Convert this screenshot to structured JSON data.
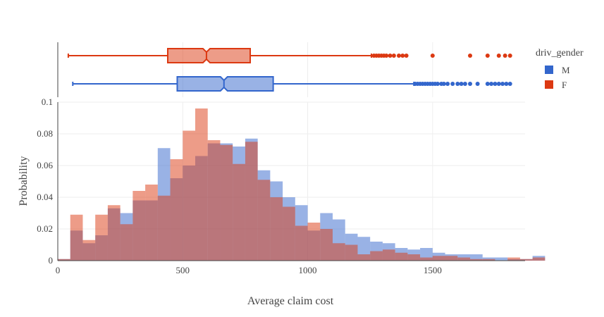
{
  "chart_data": {
    "type": "histogram",
    "xlabel": "Average claim cost",
    "ylabel": "Probability",
    "xlim": [
      0,
      1870
    ],
    "ylim": [
      0,
      0.1
    ],
    "x_ticks": [
      "0",
      "500",
      "1000",
      "1500"
    ],
    "y_ticks": [
      "0",
      "0.02",
      "0.04",
      "0.06",
      "0.08",
      "0.1"
    ],
    "grid": true,
    "bin_width": 50,
    "bin_start": 0,
    "legend": {
      "title": "driv_gender",
      "placement": "top-right",
      "entries": [
        "M",
        "F"
      ]
    },
    "series": [
      {
        "name": "M",
        "color": "#3366cc",
        "values": [
          0.001,
          0.019,
          0.011,
          0.016,
          0.033,
          0.03,
          0.038,
          0.038,
          0.071,
          0.052,
          0.06,
          0.066,
          0.074,
          0.074,
          0.072,
          0.077,
          0.057,
          0.05,
          0.04,
          0.035,
          0.019,
          0.03,
          0.026,
          0.017,
          0.015,
          0.012,
          0.011,
          0.008,
          0.007,
          0.008,
          0.005,
          0.004,
          0.004,
          0.004,
          0.002,
          0.002,
          0.001,
          0.001,
          0.003
        ],
        "box": {
          "min": 60,
          "q1": 478,
          "median": 665,
          "q3": 862,
          "upper_fence": 1425,
          "outliers": [
            1430,
            1440,
            1450,
            1460,
            1470,
            1480,
            1490,
            1500,
            1510,
            1520,
            1535,
            1545,
            1560,
            1580,
            1600,
            1615,
            1630,
            1650,
            1680,
            1720,
            1735,
            1750,
            1765,
            1780,
            1795,
            1810
          ]
        }
      },
      {
        "name": "F",
        "color": "#dc3912",
        "values": [
          0.001,
          0.029,
          0.013,
          0.029,
          0.035,
          0.023,
          0.044,
          0.048,
          0.041,
          0.064,
          0.082,
          0.096,
          0.076,
          0.073,
          0.061,
          0.075,
          0.051,
          0.04,
          0.034,
          0.022,
          0.024,
          0.02,
          0.011,
          0.01,
          0.004,
          0.006,
          0.007,
          0.005,
          0.004,
          0.002,
          0.003,
          0.003,
          0.002,
          0.001,
          0.001,
          0.0,
          0.002,
          0.001,
          0.002
        ],
        "box": {
          "min": 42,
          "q1": 440,
          "median": 595,
          "q3": 770,
          "upper_fence": 1255,
          "outliers": [
            1265,
            1275,
            1285,
            1295,
            1305,
            1315,
            1330,
            1345,
            1365,
            1380,
            1395,
            1500,
            1650,
            1720,
            1765,
            1790,
            1810
          ]
        }
      }
    ]
  }
}
